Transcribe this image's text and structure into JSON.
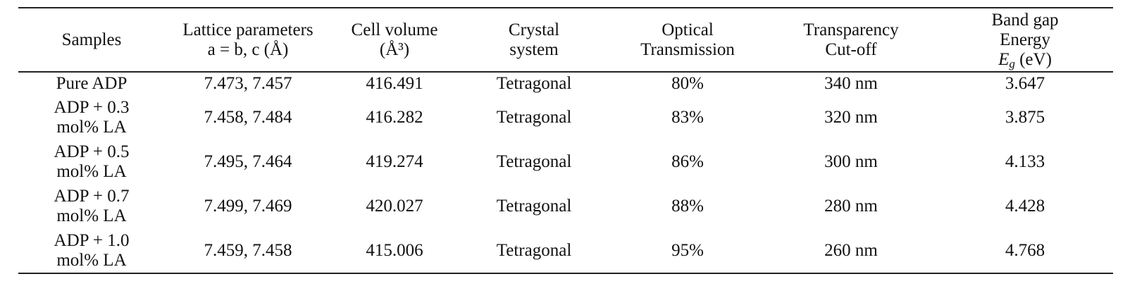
{
  "table": {
    "headers": {
      "samples": "Samples",
      "lattice_line1": "Lattice parameters",
      "lattice_line2": "a = b, c (Å)",
      "volume_line1": "Cell volume",
      "volume_line2": "(Å³)",
      "crystal_line1": "Crystal",
      "crystal_line2": "system",
      "optical_line1": "Optical",
      "optical_line2": "Transmission",
      "cutoff_line1": "Transparency",
      "cutoff_line2": "Cut-off",
      "bandgap_line1": "Band gap",
      "bandgap_line2": "Energy",
      "bandgap_symbol": "E",
      "bandgap_subscript": "g",
      "bandgap_unit": " (eV)"
    },
    "rows": [
      {
        "sample_line1": "Pure ADP",
        "sample_line2": "",
        "lattice": "7.473, 7.457",
        "volume": "416.491",
        "crystal": "Tetragonal",
        "optical": "80%",
        "cutoff": "340 nm",
        "bandgap": "3.647"
      },
      {
        "sample_line1": "ADP + 0.3",
        "sample_line2": "mol% LA",
        "lattice": "7.458, 7.484",
        "volume": "416.282",
        "crystal": "Tetragonal",
        "optical": "83%",
        "cutoff": "320 nm",
        "bandgap": "3.875"
      },
      {
        "sample_line1": "ADP + 0.5",
        "sample_line2": "mol% LA",
        "lattice": "7.495, 7.464",
        "volume": "419.274",
        "crystal": "Tetragonal",
        "optical": "86%",
        "cutoff": "300 nm",
        "bandgap": "4.133"
      },
      {
        "sample_line1": "ADP + 0.7",
        "sample_line2": "mol% LA",
        "lattice": "7.499, 7.469",
        "volume": "420.027",
        "crystal": "Tetragonal",
        "optical": "88%",
        "cutoff": "280 nm",
        "bandgap": "4.428"
      },
      {
        "sample_line1": "ADP + 1.0",
        "sample_line2": "mol% LA",
        "lattice": "7.459, 7.458",
        "volume": "415.006",
        "crystal": "Tetragonal",
        "optical": "95%",
        "cutoff": "260 nm",
        "bandgap": "4.768"
      }
    ]
  }
}
